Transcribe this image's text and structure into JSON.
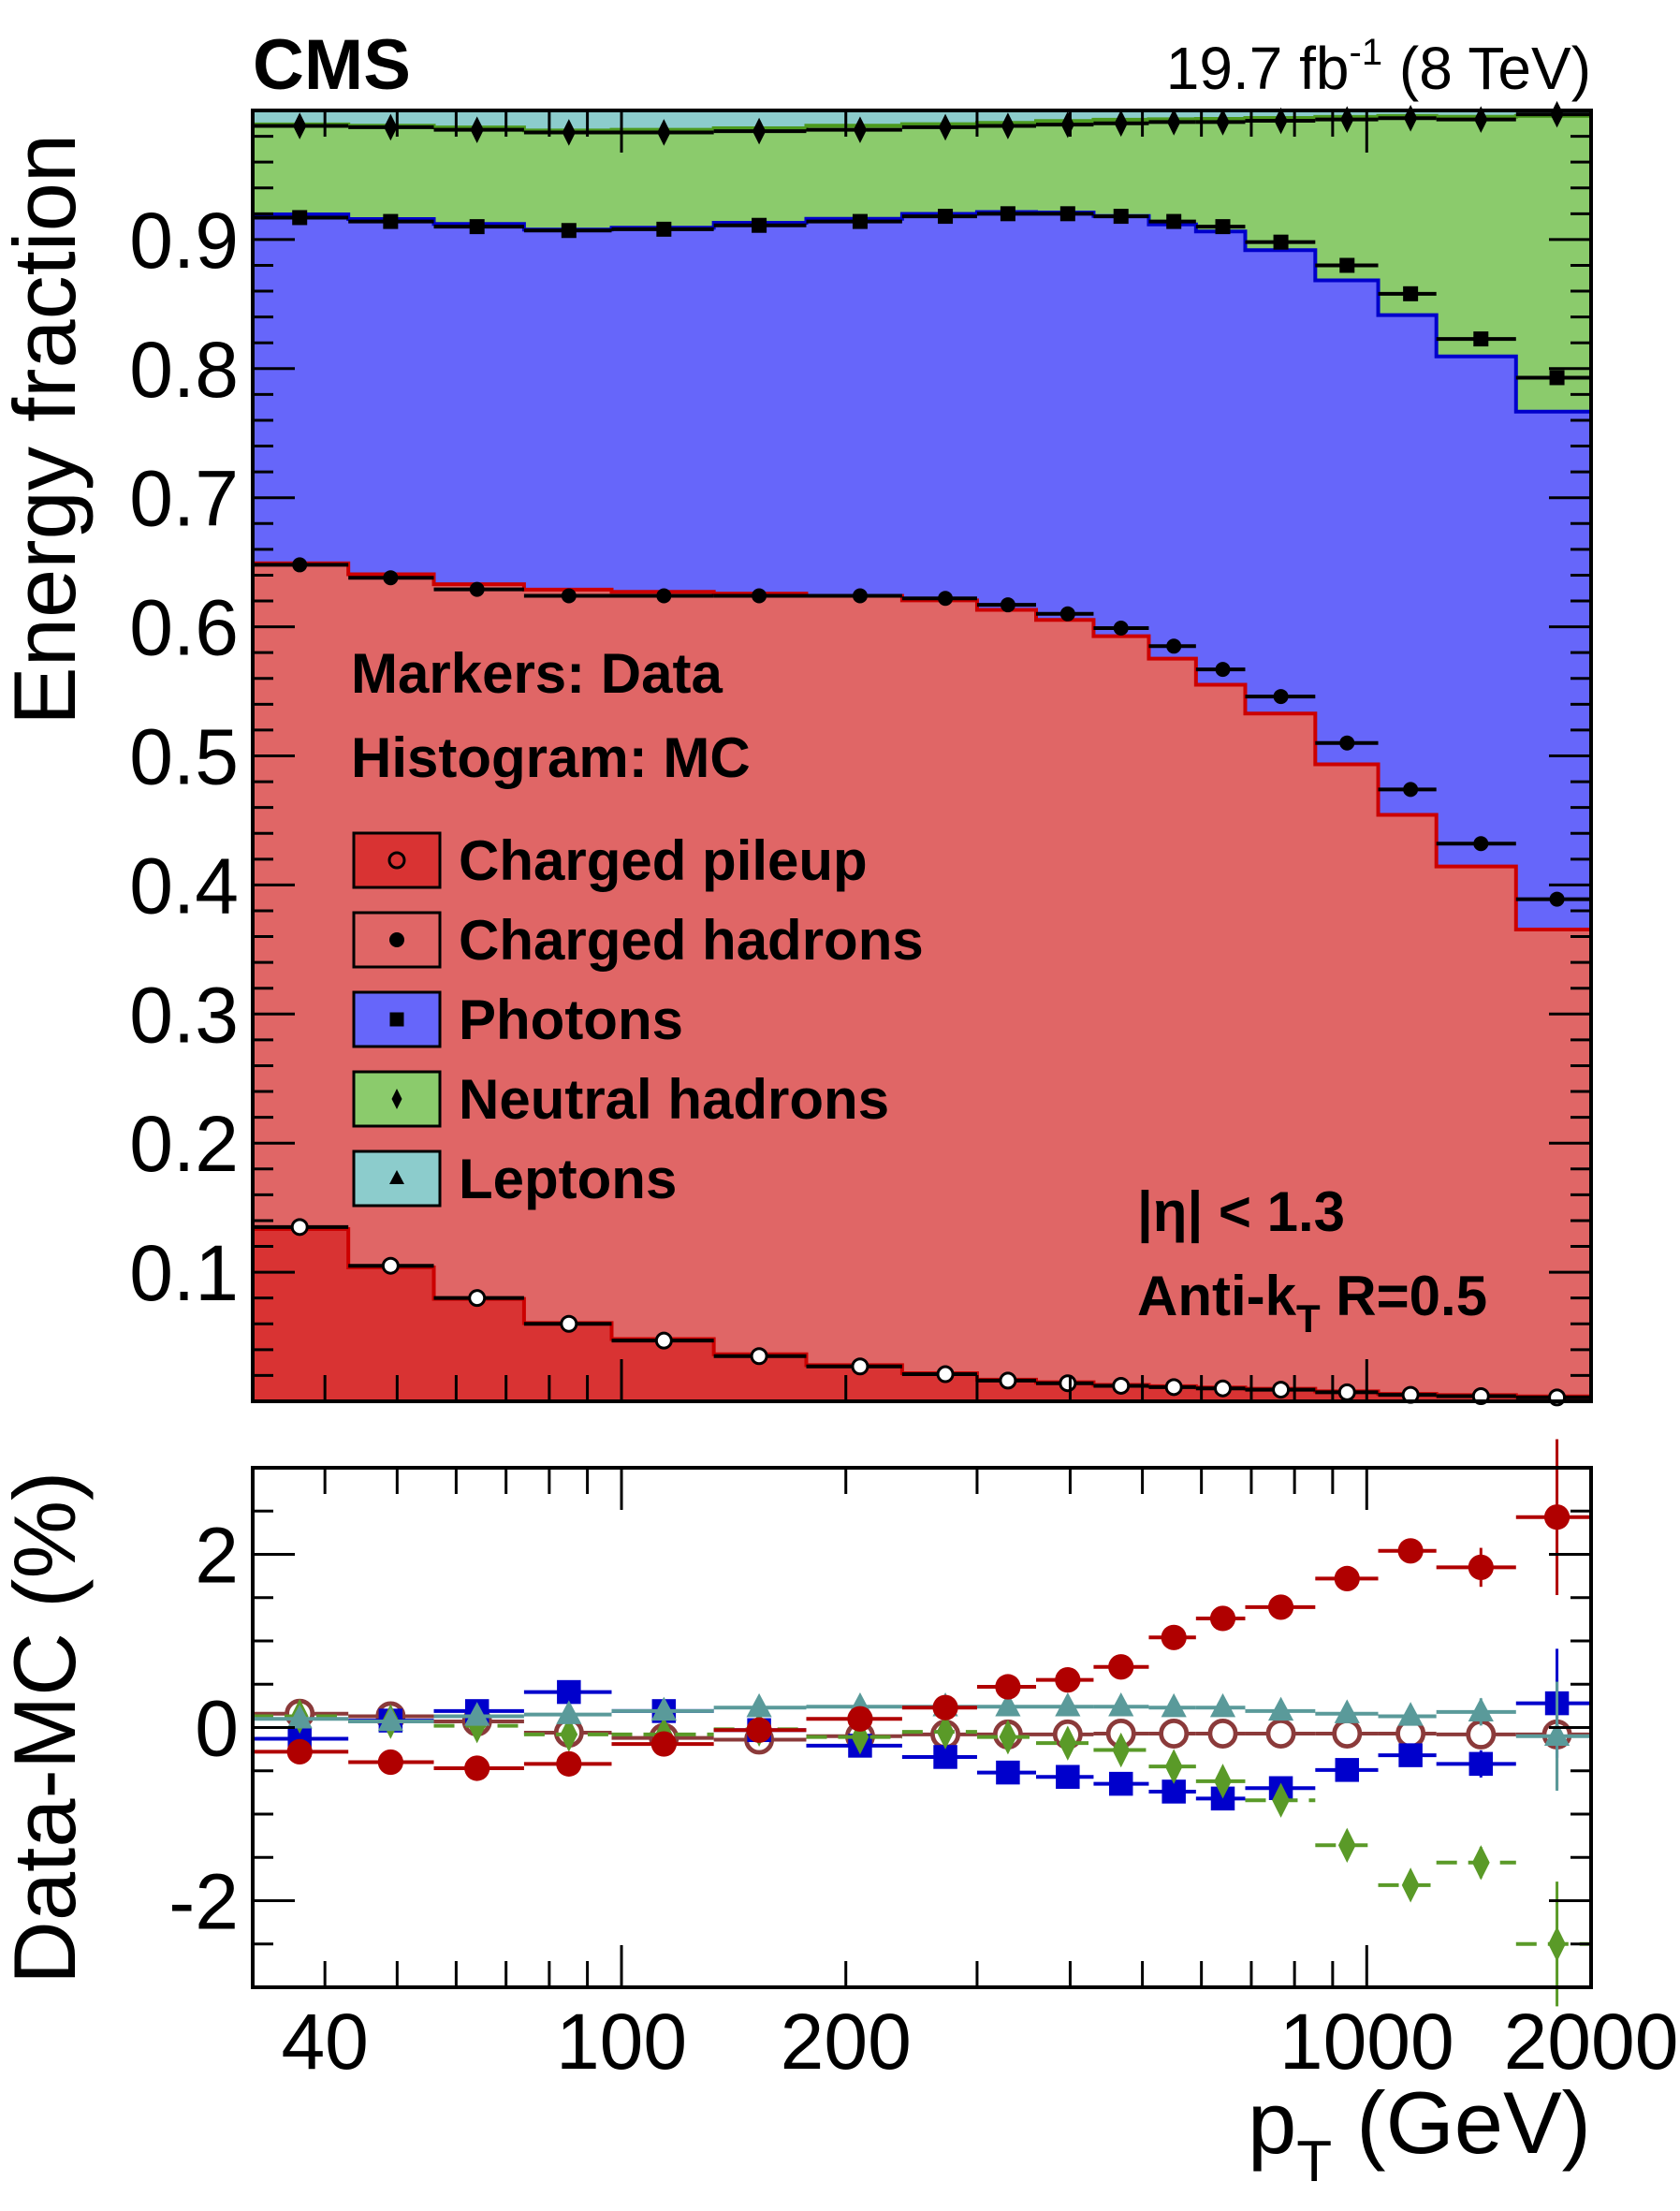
{
  "chart_data": [
    {
      "type": "area",
      "subtype": "stacked-histogram-with-markers",
      "experiment_label": "CMS",
      "lumi_label": "19.7 fb",
      "lumi_sup": "-1",
      "energy_label": "(8 TeV)",
      "ylabel": "Energy fraction",
      "xscale": "log",
      "xlim": [
        32,
        2000
      ],
      "ylim": [
        0,
        1
      ],
      "yticks": [
        "0.1",
        "0.2",
        "0.3",
        "0.4",
        "0.5",
        "0.6",
        "0.7",
        "0.8",
        "0.9"
      ],
      "annotations": {
        "markers": "Markers: Data",
        "histogram": "Histogram: MC",
        "eta": "|η| < 1.3",
        "algo_prefix": "Anti-k",
        "algo_sub": "T",
        "algo_suffix": " R=0.5"
      },
      "legend_placement": "middle-left",
      "bin_edges": [
        32,
        43,
        56,
        74,
        97,
        133,
        177,
        238,
        300,
        360,
        430,
        510,
        590,
        687,
        853,
        1036,
        1240,
        1586,
        2000
      ],
      "x": [
        37,
        49,
        64,
        85,
        114,
        153,
        209,
        272,
        330,
        397,
        468,
        551,
        641,
        767,
        941,
        1145,
        1423,
        1800
      ],
      "note_stack": "values are cumulative stack tops of data markers",
      "series": [
        {
          "name": "Charged pileup",
          "marker": "open-circle",
          "fill": "#d93333",
          "line": "#cc0000",
          "values": [
            0.135,
            0.105,
            0.08,
            0.06,
            0.047,
            0.035,
            0.027,
            0.021,
            0.016,
            0.014,
            0.012,
            0.011,
            0.01,
            0.009,
            0.007,
            0.005,
            0.004,
            0.003
          ]
        },
        {
          "name": "Charged hadrons",
          "marker": "filled-circle",
          "fill": "#e06666",
          "line": "#cc0000",
          "values": [
            0.648,
            0.638,
            0.629,
            0.624,
            0.624,
            0.624,
            0.624,
            0.622,
            0.617,
            0.61,
            0.599,
            0.585,
            0.567,
            0.546,
            0.51,
            0.474,
            0.432,
            0.389
          ]
        },
        {
          "name": "Photons",
          "marker": "square",
          "fill": "#6666fa",
          "line": "#0000cc",
          "values": [
            0.917,
            0.914,
            0.91,
            0.907,
            0.908,
            0.911,
            0.914,
            0.918,
            0.92,
            0.92,
            0.918,
            0.914,
            0.91,
            0.898,
            0.88,
            0.858,
            0.823,
            0.793
          ]
        },
        {
          "name": "Neutral hadrons",
          "marker": "diamond",
          "fill": "#8bcb6c",
          "line": "#4c9a1e",
          "values": [
            0.988,
            0.987,
            0.985,
            0.983,
            0.983,
            0.984,
            0.985,
            0.987,
            0.988,
            0.989,
            0.99,
            0.991,
            0.991,
            0.992,
            0.993,
            0.994,
            0.993,
            0.997
          ]
        },
        {
          "name": "Leptons",
          "marker": "triangle",
          "fill": "#8ccccc",
          "line": "#5a9a9a",
          "values": [
            1,
            1,
            1,
            1,
            1,
            1,
            1,
            1,
            1,
            1,
            1,
            1,
            1,
            1,
            1,
            1,
            1,
            1
          ]
        }
      ]
    },
    {
      "type": "scatter",
      "ylabel": "Data-MC (%)",
      "xlabel_main": "p",
      "xlabel_sub": "T",
      "xlabel_unit": " (GeV)",
      "xscale": "log",
      "xlim": [
        32,
        2000
      ],
      "ylim": [
        -3,
        3
      ],
      "xticks": [
        "40",
        "100",
        "200",
        "1000",
        "2000"
      ],
      "yticks": [
        "2",
        "0",
        "-2"
      ],
      "series": [
        {
          "name": "Charged hadrons",
          "marker": "filled-circle",
          "color": "#b00000",
          "values": [
            -0.28,
            -0.4,
            -0.47,
            -0.42,
            -0.19,
            -0.03,
            0.1,
            0.23,
            0.47,
            0.55,
            0.7,
            1.04,
            1.26,
            1.39,
            1.72,
            2.04,
            1.85,
            2.43
          ]
        },
        {
          "name": "Charged pileup",
          "marker": "open-circle",
          "color": "#8b3a3a",
          "values": [
            0.16,
            0.13,
            0.07,
            -0.06,
            -0.12,
            -0.14,
            -0.1,
            -0.08,
            -0.08,
            -0.08,
            -0.07,
            -0.07,
            -0.07,
            -0.07,
            -0.07,
            -0.07,
            -0.08,
            -0.08
          ]
        },
        {
          "name": "Photons",
          "marker": "square",
          "color": "#0000cc",
          "values": [
            -0.13,
            0.08,
            0.19,
            0.41,
            0.19,
            -0.03,
            -0.21,
            -0.34,
            -0.52,
            -0.57,
            -0.65,
            -0.74,
            -0.82,
            -0.7,
            -0.49,
            -0.32,
            -0.42,
            0.28
          ]
        },
        {
          "name": "Neutral hadrons",
          "marker": "diamond",
          "color": "#5a9a28",
          "values": [
            0.13,
            0.07,
            0.02,
            -0.08,
            -0.08,
            -0.02,
            -0.11,
            -0.05,
            -0.11,
            -0.18,
            -0.26,
            -0.45,
            -0.62,
            -0.84,
            -1.36,
            -1.82,
            -1.56,
            -2.5
          ]
        },
        {
          "name": "Leptons",
          "marker": "triangle",
          "color": "#5a9a9a",
          "values": [
            0.1,
            0.07,
            0.13,
            0.15,
            0.19,
            0.23,
            0.24,
            0.24,
            0.24,
            0.24,
            0.24,
            0.23,
            0.23,
            0.19,
            0.16,
            0.13,
            0.18,
            -0.1
          ]
        }
      ]
    }
  ]
}
